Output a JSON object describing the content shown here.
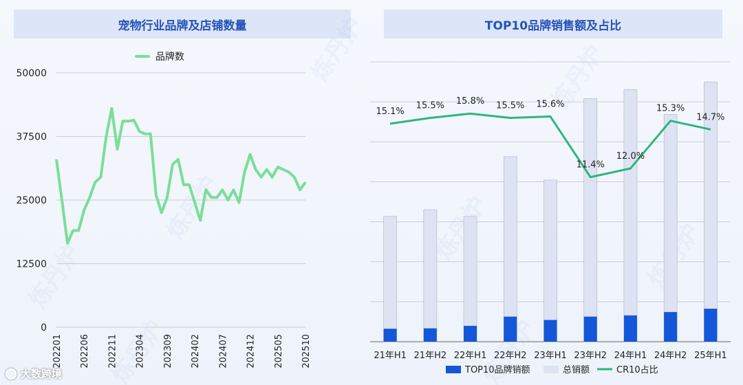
{
  "colors": {
    "brand_line": "#7bde98",
    "bar_top10": "#1457d8",
    "bar_total": "#dde3f3",
    "cr10_line": "#2eb67d",
    "title_bg": "#dde6f7",
    "title_text": "#2653b8"
  },
  "watermark": "炼丹炉",
  "footer": {
    "logo_text": "大数跨境"
  },
  "chart_data": [
    {
      "type": "line",
      "title": "宠物行业品牌及店铺数量",
      "legend": [
        "品牌数"
      ],
      "y_ticks": [
        "50000",
        "37500",
        "25000",
        "12500",
        "0"
      ],
      "ylim": [
        0,
        50000
      ],
      "grid": true,
      "x_tick_labels": [
        "202201",
        "202206",
        "202211",
        "202304",
        "202309",
        "202402",
        "202407",
        "202412",
        "202505",
        "202510"
      ],
      "series": [
        {
          "name": "品牌数",
          "x": [
            "202201",
            "202202",
            "202203",
            "202204",
            "202205",
            "202206",
            "202207",
            "202208",
            "202209",
            "202210",
            "202211",
            "202212",
            "202301",
            "202302",
            "202303",
            "202304",
            "202305",
            "202306",
            "202307",
            "202308",
            "202309",
            "202310",
            "202311",
            "202312",
            "202401",
            "202402",
            "202403",
            "202404",
            "202405",
            "202406",
            "202407",
            "202408",
            "202409",
            "202410",
            "202411",
            "202412",
            "202501",
            "202502",
            "202503",
            "202504",
            "202505",
            "202506",
            "202507",
            "202508",
            "202509",
            "202510"
          ],
          "values": [
            33000,
            25000,
            16500,
            19000,
            19000,
            23000,
            25500,
            28500,
            29500,
            37500,
            43000,
            35000,
            40500,
            40500,
            40700,
            38500,
            38000,
            38000,
            26000,
            22500,
            25500,
            32000,
            33000,
            28000,
            28000,
            24500,
            21000,
            27000,
            25500,
            25500,
            27000,
            25000,
            27000,
            24500,
            30500,
            34000,
            31000,
            29500,
            31000,
            29500,
            31500,
            31000,
            30500,
            29500,
            27000,
            28500
          ]
        }
      ]
    },
    {
      "type": "bar",
      "title": "TOP10品牌销售额及占比",
      "categories": [
        "21年H1",
        "21年H2",
        "22年H1",
        "22年H2",
        "23年H1",
        "23年H2",
        "24年H1",
        "24年H2",
        "25年H1"
      ],
      "legend": [
        "TOP10品牌销额",
        "总销额",
        "CR10占比"
      ],
      "legend_position": "bottom",
      "grid": true,
      "series": [
        {
          "name": "TOP10品牌销额",
          "values": [
            0.31,
            0.32,
            0.38,
            0.6,
            0.52,
            0.6,
            0.63,
            0.71,
            0.79
          ]
        },
        {
          "name": "总销额",
          "values": [
            3.0,
            3.16,
            3.0,
            4.43,
            3.87,
            5.82,
            6.04,
            5.44,
            6.22
          ]
        },
        {
          "name": "CR10占比",
          "values": [
            15.1,
            15.5,
            15.8,
            15.5,
            15.6,
            11.4,
            12.0,
            15.3,
            14.7
          ]
        }
      ],
      "data_labels": [
        "15.1%",
        "15.5%",
        "15.8%",
        "15.5%",
        "15.6%",
        "11.4%",
        "12.0%",
        "15.3%",
        "14.7%"
      ],
      "ylim": [
        0,
        6.7
      ]
    }
  ]
}
